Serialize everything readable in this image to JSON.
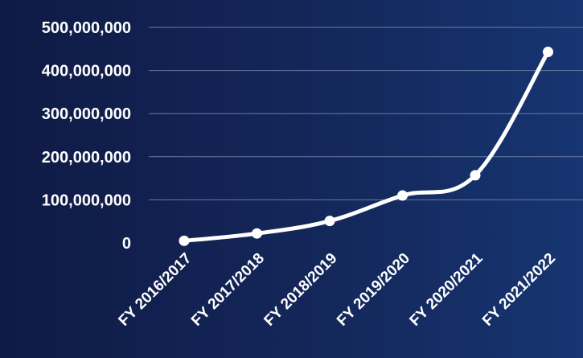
{
  "colors": {
    "background_start": "#0f1a45",
    "background_end": "#163571",
    "gridline": "#6b7aa3",
    "line": "#ffffff",
    "text": "#ffffff"
  },
  "chart_data": {
    "type": "line",
    "categories": [
      "FY 2016/2017",
      "FY 2017/2018",
      "FY 2018/2019",
      "FY 2019/2020",
      "FY 2020/2021",
      "FY 2021/2022"
    ],
    "series": [
      {
        "values": [
          5000000,
          22000000,
          51000000,
          110000000,
          157000000,
          443000000
        ]
      }
    ],
    "ylim": [
      0,
      500000000
    ],
    "yticks": [
      0,
      100000000,
      200000000,
      300000000,
      400000000,
      500000000
    ],
    "ytick_labels": [
      "0",
      "100,000,000",
      "200,000,000",
      "300,000,000",
      "400,000,000",
      "500,000,000"
    ],
    "grid": true,
    "legend": "none",
    "title": "",
    "xlabel": "",
    "ylabel": ""
  }
}
